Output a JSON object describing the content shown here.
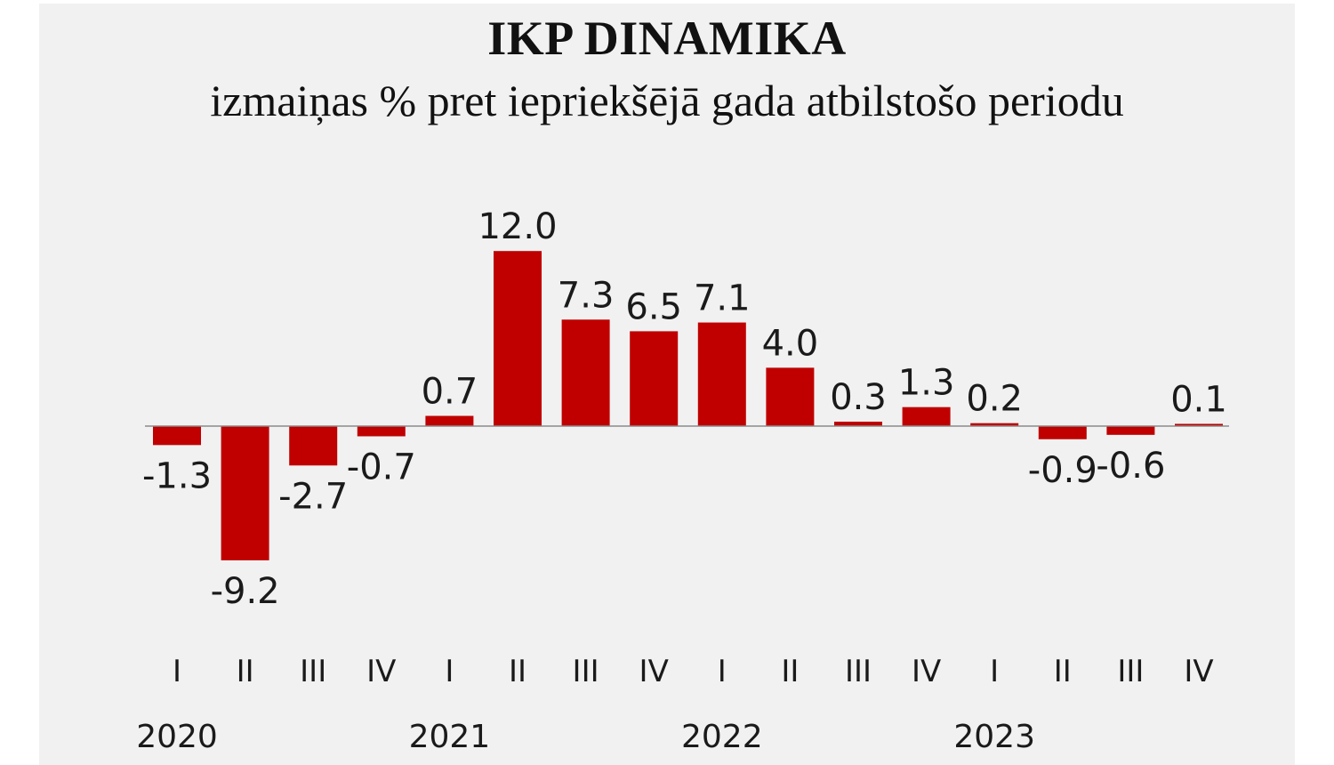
{
  "chart_data": {
    "type": "bar",
    "title": "IKP DINAMIKA",
    "subtitle": "izmaiņas % pret iepriekšējā gada atbilstošo periodu",
    "categories": [
      "2020 I",
      "2020 II",
      "2020 III",
      "2020 IV",
      "2021 I",
      "2021 II",
      "2021 III",
      "2021 IV",
      "2022 I",
      "2022 II",
      "2022 III",
      "2022 IV",
      "2023 I",
      "2023 II",
      "2023 III",
      "2023 IV"
    ],
    "quarter_labels": [
      "I",
      "II",
      "III",
      "IV",
      "I",
      "II",
      "III",
      "IV",
      "I",
      "II",
      "III",
      "IV",
      "I",
      "II",
      "III",
      "IV"
    ],
    "years": [
      "2020",
      "2021",
      "2022",
      "2023"
    ],
    "values": [
      -1.3,
      -9.2,
      -2.7,
      -0.7,
      0.7,
      12.0,
      7.3,
      6.5,
      7.1,
      4.0,
      0.3,
      1.3,
      0.2,
      -0.9,
      -0.6,
      0.1
    ],
    "value_labels": [
      "-1.3",
      "-9.2",
      "-2.7",
      "-0.7",
      "0.7",
      "12.0",
      "7.3",
      "6.5",
      "7.1",
      "4.0",
      "0.3",
      "1.3",
      "0.2",
      "-0.9",
      "-0.6",
      "0.1"
    ],
    "bar_color": "#c00000",
    "zero_line_color": "#8a8a8a",
    "background": "#f1f1f1",
    "xlabel": "",
    "ylabel": "",
    "grid": false,
    "legend": "none"
  }
}
